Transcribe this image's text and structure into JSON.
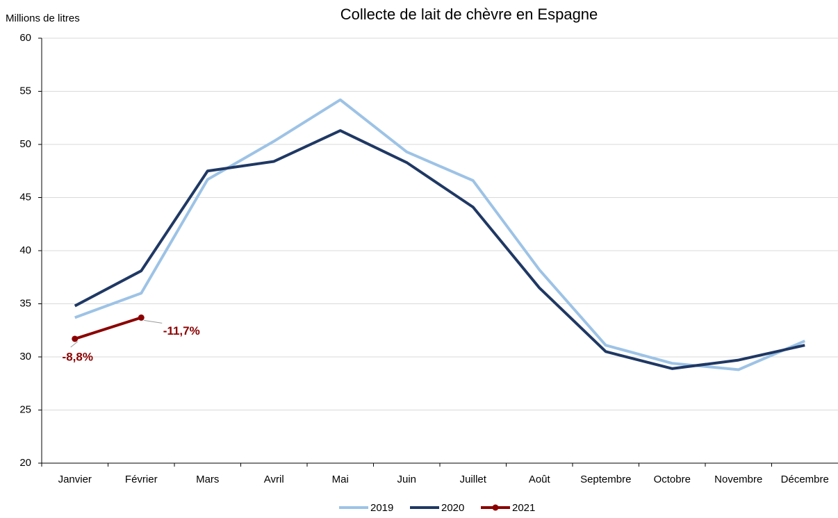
{
  "chart_data": {
    "type": "line",
    "title": "Collecte de lait de chèvre en Espagne",
    "y_label": "Millions de litres",
    "categories": [
      "Janvier",
      "Février",
      "Mars",
      "Avril",
      "Mai",
      "Juin",
      "Juillet",
      "Août",
      "Septembre",
      "Octobre",
      "Novembre",
      "Décembre"
    ],
    "series": [
      {
        "name": "2019",
        "color": "#9dc3e6",
        "values": [
          33.7,
          36.0,
          46.7,
          50.3,
          54.2,
          49.3,
          46.6,
          38.2,
          31.1,
          29.4,
          28.8,
          31.5
        ]
      },
      {
        "name": "2020",
        "color": "#1f3864",
        "values": [
          34.8,
          38.1,
          47.5,
          48.4,
          51.3,
          48.3,
          44.1,
          36.5,
          30.5,
          28.9,
          29.7,
          31.1
        ]
      },
      {
        "name": "2021",
        "color": "#8b0000",
        "markers": true,
        "values": [
          31.7,
          33.7,
          null,
          null,
          null,
          null,
          null,
          null,
          null,
          null,
          null,
          null
        ]
      }
    ],
    "annotations": [
      "-8,8%",
      "-11,7%"
    ],
    "ylim": [
      20,
      60
    ],
    "yticks": [
      20,
      25,
      30,
      35,
      40,
      45,
      50,
      55,
      60
    ],
    "grid": true,
    "legend": "bottom"
  }
}
